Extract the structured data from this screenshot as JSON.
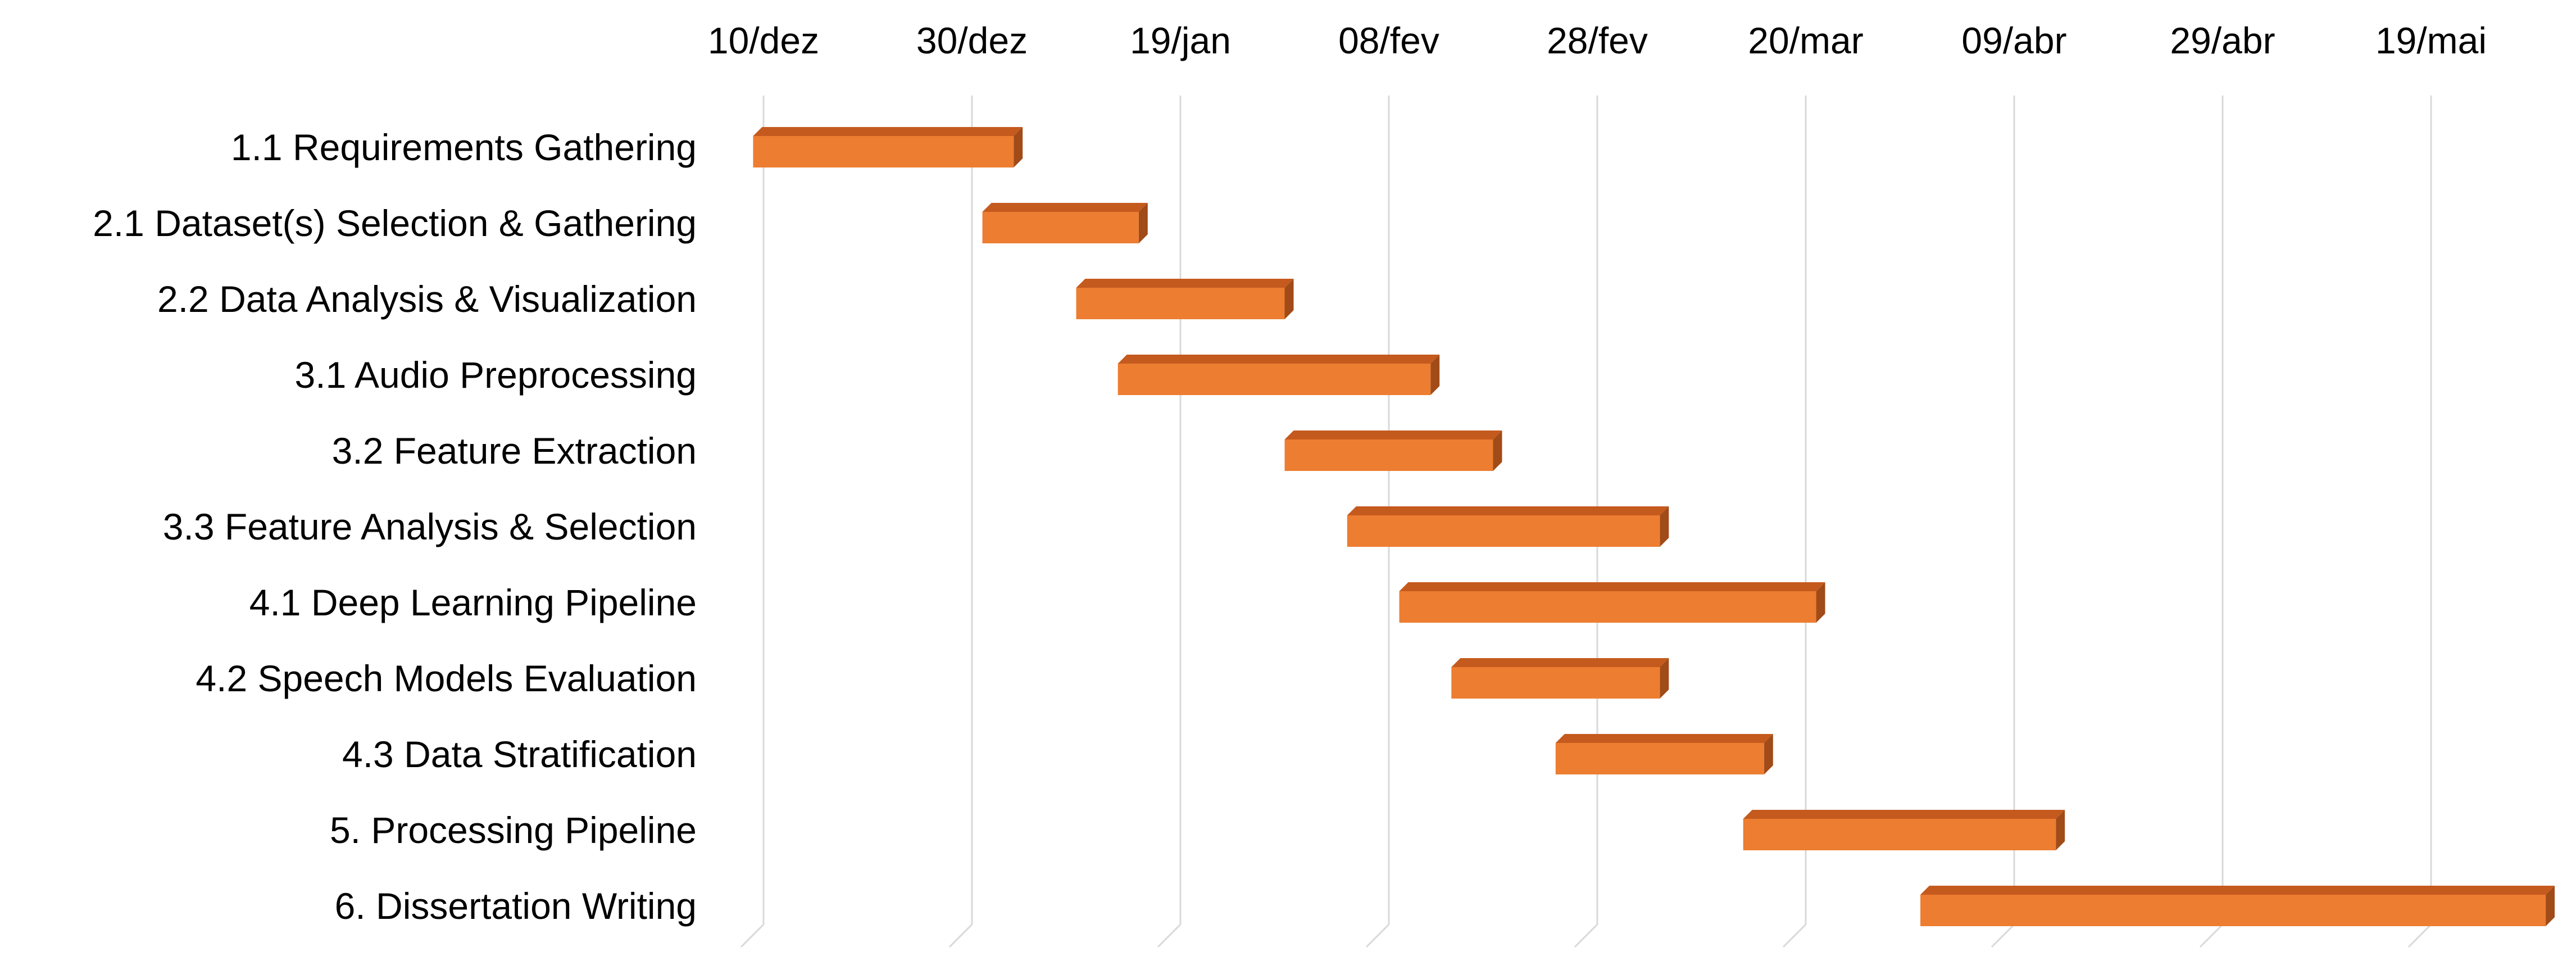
{
  "chart_data": {
    "type": "bar",
    "orientation": "horizontal-gantt",
    "x_axis": {
      "ticks": [
        "10/dez",
        "30/dez",
        "19/jan",
        "08/fev",
        "28/fev",
        "20/mar",
        "09/abr",
        "29/abr",
        "19/mai"
      ],
      "tick_day_offsets": [
        0,
        20,
        40,
        60,
        80,
        100,
        120,
        140,
        160
      ],
      "position": "top",
      "range_days": [
        -1.5,
        170
      ]
    },
    "grid": true,
    "legend": "none",
    "tasks": [
      {
        "name": "1.1 Requirements Gathering",
        "start": "09/dez",
        "end": "03/jan"
      },
      {
        "name": "2.1 Dataset(s) Selection & Gathering",
        "start": "31/dez",
        "end": "15/jan"
      },
      {
        "name": "2.2 Data Analysis & Visualization",
        "start": "09/jan",
        "end": "29/jan"
      },
      {
        "name": "3.1 Audio Preprocessing",
        "start": "13/jan",
        "end": "12/fev"
      },
      {
        "name": "3.2 Feature Extraction",
        "start": "29/jan",
        "end": "18/fev"
      },
      {
        "name": "3.3 Feature Analysis & Selection",
        "start": "04/fev",
        "end": "06/mar"
      },
      {
        "name": "4.1 Deep Learning Pipeline",
        "start": "09/fev",
        "end": "21/mar"
      },
      {
        "name": "4.2 Speech Models Evaluation",
        "start": "14/fev",
        "end": "06/mar"
      },
      {
        "name": "4.3 Data Stratification",
        "start": "24/fev",
        "end": "16/mar"
      },
      {
        "name": "5. Processing Pipeline",
        "start": "14/mar",
        "end": "13/abr"
      },
      {
        "name": "6. Dissertation Writing",
        "start": "31/mar",
        "end": "30/mai"
      }
    ],
    "task_day_offsets": [
      [
        -1,
        24
      ],
      [
        21,
        36
      ],
      [
        30,
        50
      ],
      [
        34,
        64
      ],
      [
        50,
        70
      ],
      [
        56,
        86
      ],
      [
        61,
        101
      ],
      [
        66,
        86
      ],
      [
        76,
        96
      ],
      [
        94,
        124
      ],
      [
        111,
        171
      ]
    ],
    "colors": {
      "bar_face": "#ED7D31",
      "bar_top": "#C55A1E",
      "bar_side": "#A14B18",
      "grid": "#D9D9D9"
    }
  }
}
